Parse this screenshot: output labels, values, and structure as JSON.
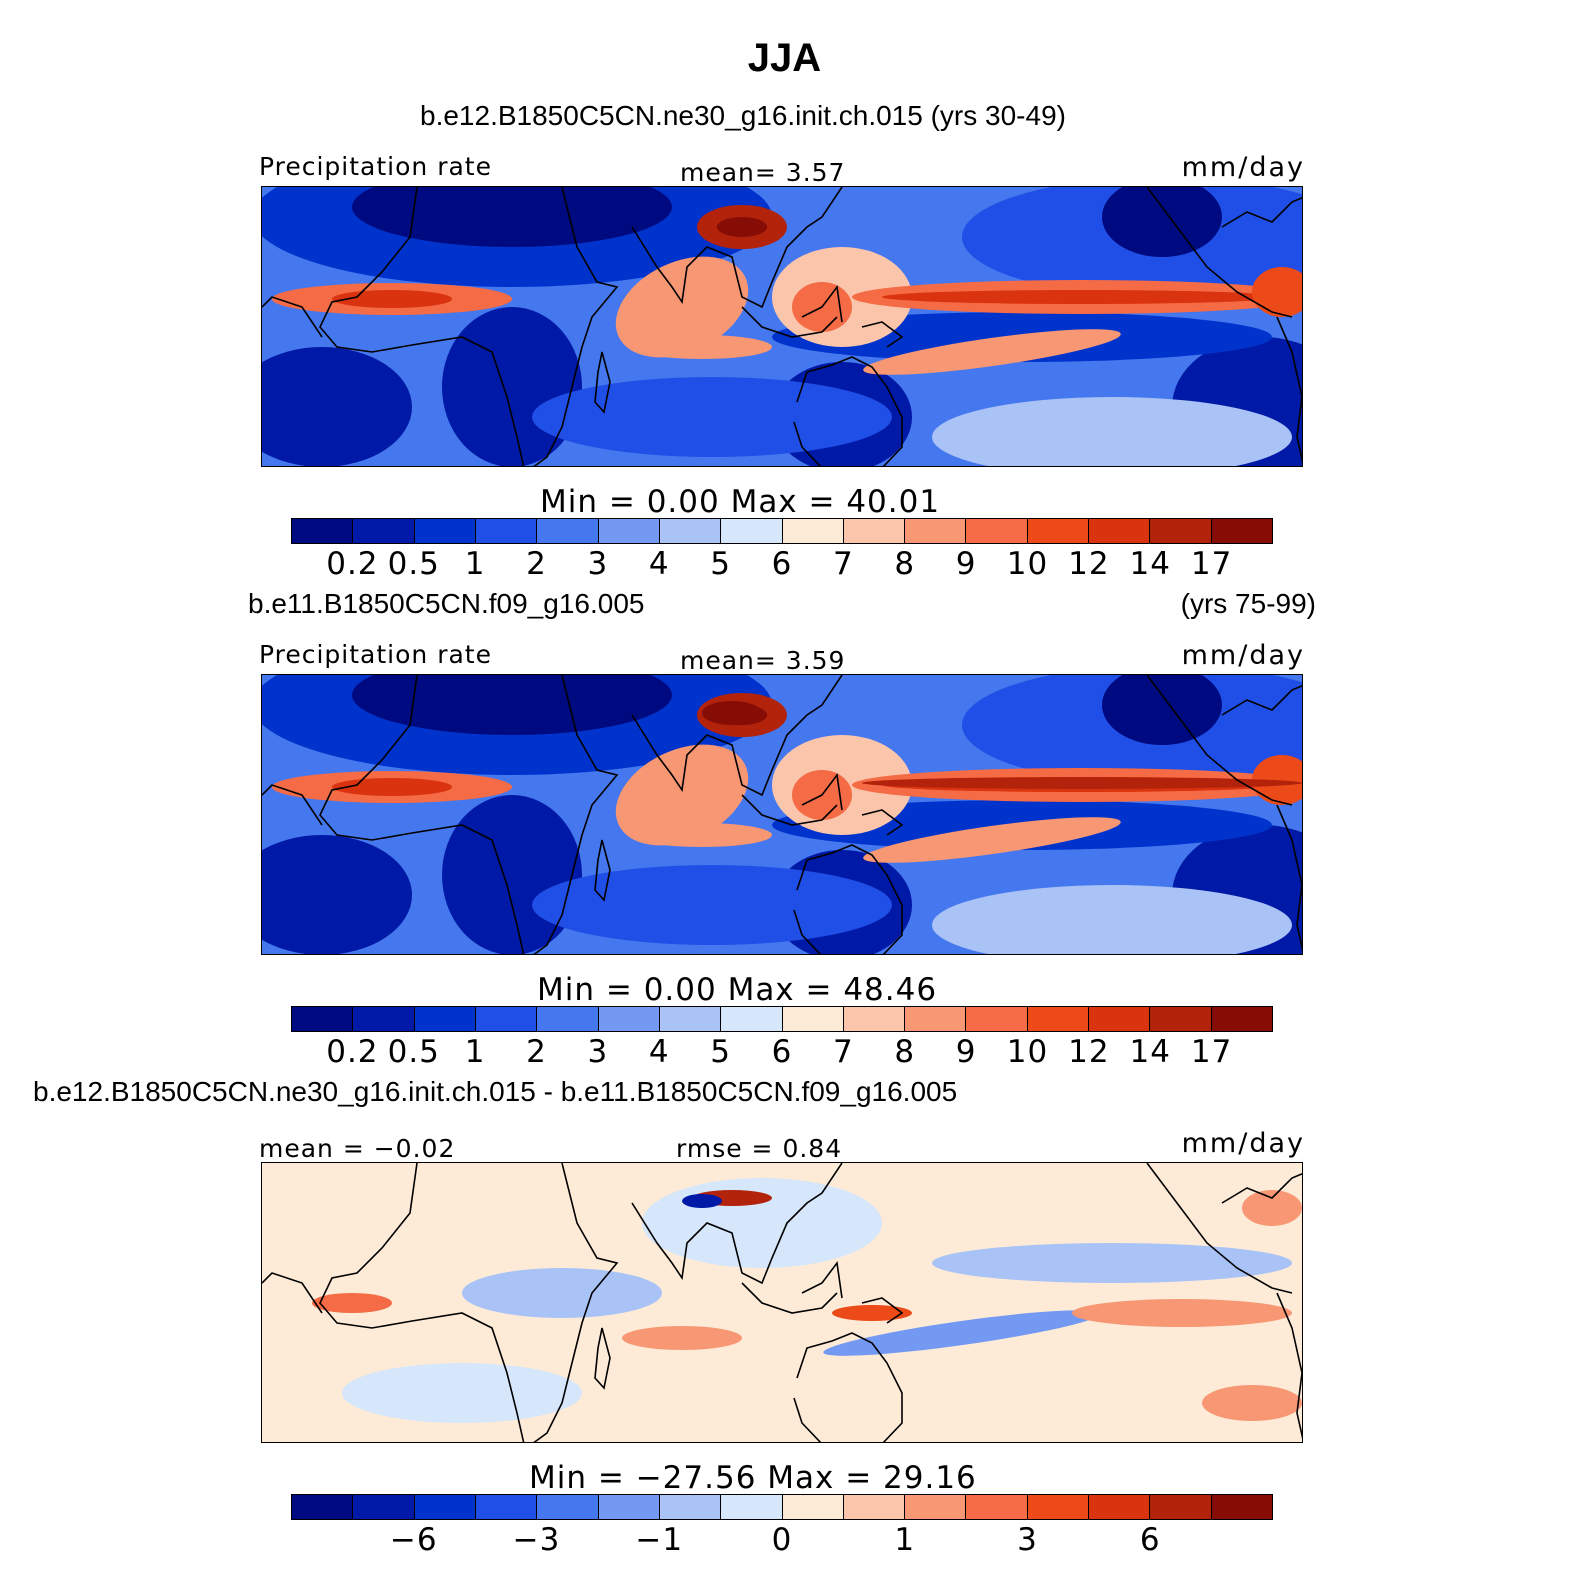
{
  "figure": {
    "title": "JJA"
  },
  "colors": {
    "precip_levels": [
      "#000a80",
      "#0019a6",
      "#0033cc",
      "#1f4fe6",
      "#4577ee",
      "#7499f3",
      "#a9c3f7",
      "#d6e6fb",
      "#fdebd8",
      "#fbc5ac",
      "#f79774",
      "#f46b45",
      "#ec4a19",
      "#d9340f",
      "#b3230b",
      "#850d05"
    ],
    "diff_levels": [
      "#000a80",
      "#0019a6",
      "#0033cc",
      "#1f4fe6",
      "#4577ee",
      "#7499f3",
      "#a9c3f7",
      "#d6e6fb",
      "#fdebd8",
      "#fbc5ac",
      "#f79774",
      "#f46b45",
      "#ec4a19",
      "#d9340f",
      "#b3230b",
      "#850d05"
    ]
  },
  "panels": [
    {
      "title_left": "b.e12.B1850C5CN.ne30_g16.init.ch.015 (yrs 30-49)",
      "title_right": "",
      "left_label": "Precipitation rate",
      "center_label": "mean=    3.57",
      "units": "mm/day",
      "map_type": "precip",
      "minmax": "Min  =     0.00  Max  =    40.01",
      "colorbar_ticks": [
        "0.2",
        "0.5",
        "1",
        "2",
        "3",
        "4",
        "5",
        "6",
        "7",
        "8",
        "9",
        "10",
        "12",
        "14",
        "17"
      ]
    },
    {
      "title_left": "b.e11.B1850C5CN.f09_g16.005",
      "title_right": "(yrs 75-99)",
      "left_label": "Precipitation rate",
      "center_label": "mean=    3.59",
      "units": "mm/day",
      "map_type": "precip",
      "minmax": "Min  =     0.00  Max  =    48.46",
      "colorbar_ticks": [
        "0.2",
        "0.5",
        "1",
        "2",
        "3",
        "4",
        "5",
        "6",
        "7",
        "8",
        "9",
        "10",
        "12",
        "14",
        "17"
      ]
    },
    {
      "title_left": "b.e12.B1850C5CN.ne30_g16.init.ch.015 - b.e11.B1850C5CN.f09_g16.005",
      "title_right": "",
      "left_label": "mean  =   −0.02",
      "center_label": "rmse  =    0.84",
      "units": "mm/day",
      "map_type": "diff",
      "minmax": "Min  =  −27.56  Max  =    29.16",
      "colorbar_ticks": [
        "−6",
        "−3",
        "−1",
        "0",
        "1",
        "3",
        "6"
      ]
    }
  ]
}
